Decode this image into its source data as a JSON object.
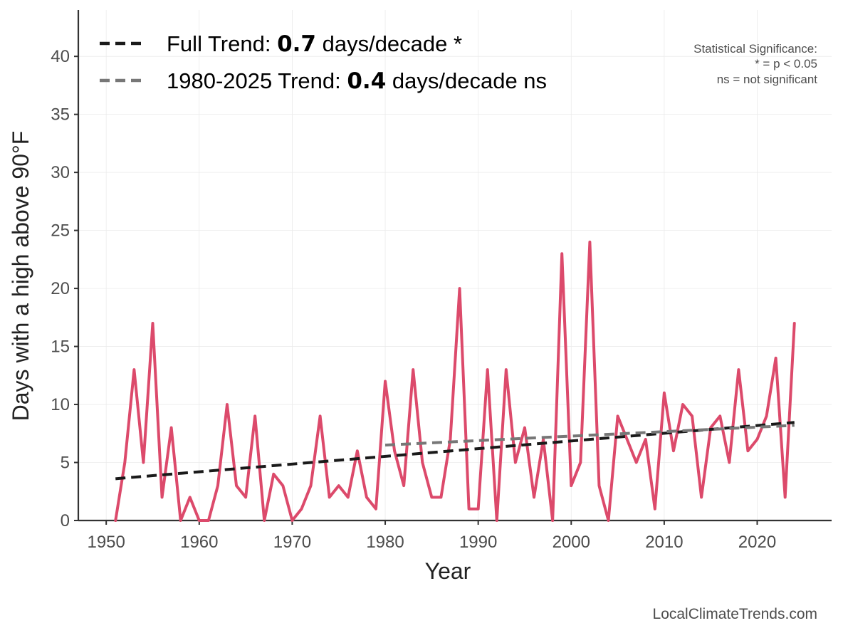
{
  "chart_data": {
    "type": "line",
    "xlabel": "Year",
    "ylabel": "Days with a high above 90°F",
    "xlim": [
      1947,
      2028
    ],
    "ylim": [
      0,
      44
    ],
    "x_ticks": [
      1950,
      1960,
      1970,
      1980,
      1990,
      2000,
      2010,
      2020
    ],
    "y_ticks": [
      0,
      5,
      10,
      15,
      20,
      25,
      30,
      35,
      40
    ],
    "grid": true,
    "legend_placement": "top-left",
    "series": [
      {
        "color": "#dc4a6b",
        "x": [
          1951,
          1952,
          1953,
          1954,
          1955,
          1956,
          1957,
          1958,
          1959,
          1960,
          1961,
          1962,
          1963,
          1964,
          1965,
          1966,
          1967,
          1968,
          1969,
          1970,
          1971,
          1972,
          1973,
          1974,
          1975,
          1976,
          1977,
          1978,
          1979,
          1980,
          1981,
          1982,
          1983,
          1984,
          1985,
          1986,
          1987,
          1988,
          1989,
          1990,
          1991,
          1992,
          1993,
          1994,
          1995,
          1996,
          1997,
          1998,
          1999,
          2000,
          2001,
          2002,
          2003,
          2004,
          2005,
          2006,
          2007,
          2008,
          2009,
          2010,
          2011,
          2012,
          2013,
          2014,
          2015,
          2016,
          2017,
          2018,
          2019,
          2020,
          2021,
          2022,
          2023,
          2024
        ],
        "values": [
          0,
          5,
          13,
          5,
          17,
          2,
          8,
          0,
          2,
          0,
          0,
          3,
          10,
          3,
          2,
          9,
          0,
          4,
          3,
          0,
          1,
          3,
          9,
          2,
          3,
          2,
          6,
          2,
          1,
          12,
          6,
          3,
          13,
          5,
          2,
          2,
          7,
          20,
          1,
          1,
          13,
          0,
          13,
          5,
          8,
          2,
          7,
          0,
          23,
          3,
          5,
          24,
          3,
          0,
          9,
          7,
          5,
          7,
          1,
          11,
          6,
          10,
          9,
          2,
          8,
          9,
          5,
          13,
          6,
          7,
          9,
          14,
          2,
          17
        ]
      }
    ],
    "trend_lines": [
      {
        "name": "Full Trend",
        "color": "#1a1a1a",
        "style": "dashed",
        "x": [
          1951,
          2024
        ],
        "values": [
          3.6,
          8.45
        ]
      },
      {
        "name": "1980-2025 Trend",
        "color": "#777777",
        "style": "dashed",
        "x": [
          1980,
          2024
        ],
        "values": [
          6.5,
          8.2
        ]
      }
    ],
    "legend": [
      {
        "prefix": "Full Trend: ",
        "value": "0.7",
        "suffix": " days/decade *",
        "color": "#1a1a1a"
      },
      {
        "prefix": "1980-2025 Trend: ",
        "value": "0.4",
        "suffix": " days/decade ns",
        "color": "#777777"
      }
    ],
    "annotations": {
      "significance": [
        "Statistical Significance:",
        "* = p < 0.05",
        "ns = not significant"
      ],
      "credit": "LocalClimateTrends.com"
    }
  }
}
